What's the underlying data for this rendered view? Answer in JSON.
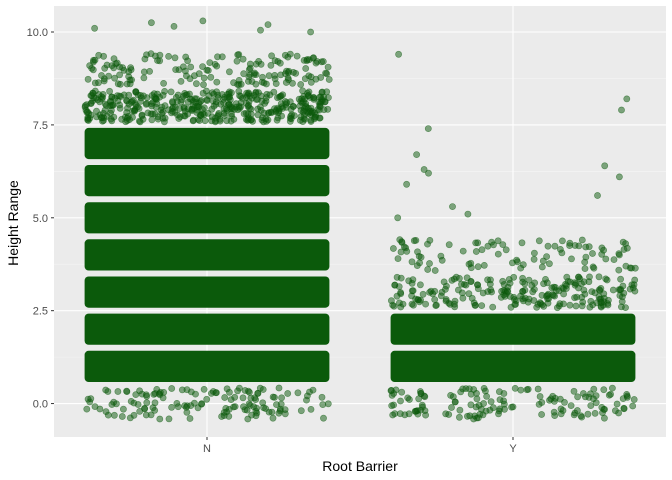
{
  "chart_data": {
    "type": "scatter",
    "jitter": true,
    "title": "",
    "xlabel": "Root Barrier",
    "ylabel": "Height Range",
    "categories": [
      "N",
      "Y"
    ],
    "ylim": [
      -0.9,
      10.7
    ],
    "yticks": [
      0.0,
      2.5,
      5.0,
      7.5,
      10.0
    ],
    "ytick_labels": [
      "0.0",
      "2.5",
      "5.0",
      "7.5",
      "10.0"
    ],
    "grid": true,
    "legend": "none",
    "colors": {
      "panel": "#ebebeb",
      "grid_major": "#ffffff",
      "grid_minor": "#f5f5f5",
      "point": "#0b5a0b",
      "point_alpha": 0.5
    },
    "series": [
      {
        "category": "N",
        "dense_levels": [
          1,
          2,
          3,
          4,
          5,
          6,
          7
        ],
        "sparse_levels": [
          0,
          8,
          9
        ],
        "outliers": [
          10.0,
          10.05,
          10.15,
          10.2,
          10.3,
          10.25,
          10.1
        ]
      },
      {
        "category": "Y",
        "dense_levels": [
          1,
          2
        ],
        "sparse_levels": [
          0,
          3,
          4
        ],
        "outliers": [
          5.0,
          5.1,
          5.3,
          5.6,
          5.9,
          6.1,
          6.2,
          6.3,
          6.4,
          6.7,
          7.4,
          7.9,
          8.2,
          9.4
        ]
      }
    ]
  }
}
